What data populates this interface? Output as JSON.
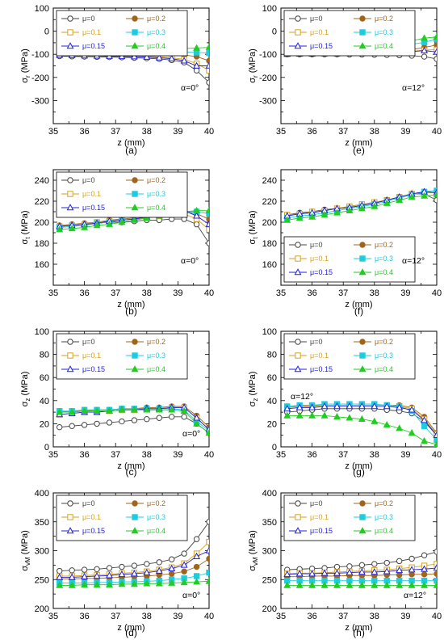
{
  "figure": {
    "series_styles": [
      {
        "label": "μ=0",
        "color": "#444444",
        "marker": "circle-open"
      },
      {
        "label": "μ=0.2",
        "color": "#a0651a",
        "marker": "circle-filled"
      },
      {
        "label": "μ=0.1",
        "color": "#d6a21e",
        "marker": "square-open"
      },
      {
        "label": "μ=0.3",
        "color": "#1ecce0",
        "marker": "square-filled"
      },
      {
        "label": "μ=0.15",
        "color": "#2222dd",
        "marker": "triangle-open"
      },
      {
        "label": "μ=0.4",
        "color": "#22cc22",
        "marker": "triangle-filled"
      }
    ]
  },
  "chart_data": [
    {
      "type": "line",
      "caption": "(a)",
      "annotation": "α=0°",
      "xlabel": "z (mm)",
      "ylabel_main": "σ",
      "ylabel_sub": "r",
      "ylabel_unit": " (MPa)",
      "xlim": [
        35,
        40
      ],
      "xticks": [
        35,
        36,
        37,
        38,
        39,
        40
      ],
      "ylim": [
        -400,
        100
      ],
      "yticks": [
        -300,
        -200,
        -100,
        0,
        100
      ],
      "x": [
        35.2,
        35.6,
        36.0,
        36.4,
        36.8,
        37.2,
        37.6,
        38.0,
        38.4,
        38.8,
        39.2,
        39.6,
        40.0
      ],
      "series": [
        {
          "values": [
            -108,
            -109,
            -110,
            -111,
            -112,
            -113,
            -115,
            -117,
            -120,
            -125,
            -135,
            -170,
            -222
          ]
        },
        {
          "values": [
            -96,
            -96,
            -96,
            -96,
            -96,
            -96,
            -96,
            -97,
            -98,
            -100,
            -103,
            -110,
            -128
          ]
        },
        {
          "values": [
            -100,
            -101,
            -102,
            -103,
            -104,
            -105,
            -106,
            -108,
            -111,
            -115,
            -122,
            -140,
            -170
          ]
        },
        {
          "values": [
            -90,
            -90,
            -90,
            -90,
            -90,
            -90,
            -90,
            -90,
            -90,
            -90,
            -90,
            -92,
            -95
          ]
        },
        {
          "values": [
            -104,
            -105,
            -106,
            -107,
            -108,
            -109,
            -110,
            -112,
            -115,
            -119,
            -128,
            -150,
            -150
          ]
        },
        {
          "values": [
            -85,
            -84,
            -83,
            -82,
            -81,
            -80,
            -79,
            -78,
            -77,
            -76,
            -75,
            -73,
            -70
          ]
        }
      ]
    },
    {
      "type": "line",
      "caption": "(e)",
      "annotation": "α=12°",
      "xlabel": "z (mm)",
      "ylabel_main": "σ",
      "ylabel_sub": "r",
      "ylabel_unit": " (MPa)",
      "xlim": [
        35,
        40
      ],
      "xticks": [
        35,
        36,
        37,
        38,
        39,
        40
      ],
      "ylim": [
        -400,
        100
      ],
      "yticks": [
        -300,
        -200,
        -100,
        0,
        100
      ],
      "x": [
        35.2,
        35.6,
        36.0,
        36.4,
        36.8,
        37.2,
        37.6,
        38.0,
        38.4,
        38.8,
        39.2,
        39.6,
        40.0
      ],
      "series": [
        {
          "values": [
            -100,
            -100,
            -100,
            -100,
            -100,
            -101,
            -101,
            -102,
            -103,
            -104,
            -106,
            -110,
            -120
          ]
        },
        {
          "values": [
            -95,
            -95,
            -94,
            -94,
            -93,
            -92,
            -91,
            -90,
            -88,
            -85,
            -80,
            -70,
            -60
          ]
        },
        {
          "values": [
            -98,
            -97,
            -97,
            -96,
            -96,
            -95,
            -94,
            -93,
            -92,
            -90,
            -87,
            -82,
            -80
          ]
        },
        {
          "values": [
            -80,
            -79,
            -78,
            -77,
            -76,
            -74,
            -72,
            -70,
            -67,
            -63,
            -57,
            -48,
            -35
          ]
        },
        {
          "values": [
            -99,
            -98,
            -98,
            -97,
            -97,
            -96,
            -95,
            -94,
            -93,
            -91,
            -88,
            -84,
            -90
          ]
        },
        {
          "values": [
            -72,
            -71,
            -70,
            -68,
            -66,
            -64,
            -62,
            -59,
            -56,
            -50,
            -42,
            -30,
            -25
          ]
        }
      ]
    },
    {
      "type": "line",
      "caption": "(b)",
      "annotation": "α=0°",
      "xlabel": "z (mm)",
      "ylabel_main": "σ",
      "ylabel_sub": "t",
      "ylabel_unit": " (MPa)",
      "xlim": [
        35,
        40
      ],
      "xticks": [
        35,
        36,
        37,
        38,
        39,
        40
      ],
      "ylim": [
        140,
        250
      ],
      "yticks": [
        160,
        180,
        200,
        220,
        240
      ],
      "x": [
        35.2,
        35.6,
        36.0,
        36.4,
        36.8,
        37.2,
        37.6,
        38.0,
        38.4,
        38.8,
        39.2,
        39.6,
        40.0
      ],
      "series": [
        {
          "values": [
            196,
            197,
            198,
            199,
            200,
            200,
            201,
            202,
            202,
            203,
            203,
            198,
            180
          ]
        },
        {
          "values": [
            197,
            198,
            199,
            200,
            202,
            203,
            204,
            206,
            207,
            209,
            210,
            208,
            203
          ]
        },
        {
          "values": [
            196,
            197,
            198,
            200,
            201,
            202,
            203,
            204,
            206,
            207,
            208,
            203,
            193
          ]
        },
        {
          "values": [
            195,
            196,
            197,
            199,
            200,
            202,
            203,
            205,
            207,
            208,
            210,
            210,
            208
          ]
        },
        {
          "values": [
            196,
            197,
            198,
            199,
            201,
            202,
            203,
            205,
            206,
            208,
            211,
            206,
            198
          ]
        },
        {
          "values": [
            193,
            194,
            195,
            197,
            198,
            200,
            202,
            204,
            206,
            208,
            210,
            211,
            211
          ]
        }
      ]
    },
    {
      "type": "line",
      "caption": "(f)",
      "annotation": "α=12°",
      "xlabel": "z (mm)",
      "ylabel_main": "σ",
      "ylabel_sub": "t",
      "ylabel_unit": " (MPa)",
      "xlim": [
        35,
        40
      ],
      "xticks": [
        35,
        36,
        37,
        38,
        39,
        40
      ],
      "ylim": [
        140,
        250
      ],
      "yticks": [
        160,
        180,
        200,
        220,
        240
      ],
      "x": [
        35.2,
        35.6,
        36.0,
        36.4,
        36.8,
        37.2,
        37.6,
        38.0,
        38.4,
        38.8,
        39.2,
        39.6,
        40.0
      ],
      "series": [
        {
          "values": [
            207,
            209,
            210,
            212,
            213,
            215,
            217,
            219,
            221,
            224,
            227,
            227,
            221
          ]
        },
        {
          "values": [
            206,
            208,
            209,
            211,
            213,
            214,
            216,
            218,
            221,
            224,
            227,
            229,
            230
          ]
        },
        {
          "values": [
            207,
            208,
            210,
            211,
            213,
            215,
            217,
            219,
            221,
            224,
            227,
            228,
            228
          ]
        },
        {
          "values": [
            204,
            206,
            207,
            209,
            211,
            213,
            215,
            217,
            220,
            223,
            226,
            229,
            230
          ]
        },
        {
          "values": [
            206,
            208,
            209,
            211,
            213,
            214,
            216,
            218,
            221,
            224,
            227,
            229,
            228
          ]
        },
        {
          "values": [
            202,
            204,
            205,
            207,
            209,
            211,
            213,
            215,
            218,
            221,
            224,
            225,
            226
          ]
        }
      ]
    },
    {
      "type": "line",
      "caption": "(c)",
      "annotation": "α=0°",
      "xlabel": "z (mm)",
      "ylabel_main": "σ",
      "ylabel_sub": "z",
      "ylabel_unit": " (MPa)",
      "xlim": [
        35,
        40
      ],
      "xticks": [
        35,
        36,
        37,
        38,
        39,
        40
      ],
      "ylim": [
        0,
        100
      ],
      "yticks": [
        0,
        20,
        40,
        60,
        80,
        100
      ],
      "x": [
        35.2,
        35.6,
        36.0,
        36.4,
        36.8,
        37.2,
        37.6,
        38.0,
        38.4,
        38.8,
        39.2,
        39.6,
        40.0
      ],
      "series": [
        {
          "values": [
            17,
            18,
            19,
            20,
            21,
            22,
            23,
            24,
            25,
            26,
            26,
            20,
            12
          ]
        },
        {
          "values": [
            30,
            31,
            31,
            32,
            32,
            33,
            33,
            34,
            34,
            35,
            35,
            27,
            17
          ]
        },
        {
          "values": [
            28,
            29,
            30,
            30,
            31,
            32,
            32,
            33,
            33,
            34,
            34,
            25,
            15
          ]
        },
        {
          "values": [
            31,
            31,
            32,
            32,
            32,
            33,
            33,
            33,
            33,
            33,
            32,
            22,
            14
          ]
        },
        {
          "values": [
            28,
            29,
            30,
            30,
            31,
            32,
            32,
            33,
            33,
            34,
            34,
            25,
            15
          ]
        },
        {
          "values": [
            30,
            30,
            31,
            31,
            31,
            32,
            32,
            32,
            32,
            32,
            31,
            20,
            12
          ]
        }
      ]
    },
    {
      "type": "line",
      "caption": "(g)",
      "annotation": "α=12°",
      "xlabel": "z (mm)",
      "ylabel_main": "σ",
      "ylabel_sub": "z",
      "ylabel_unit": " (MPa)",
      "xlim": [
        35,
        40
      ],
      "xticks": [
        35,
        36,
        37,
        38,
        39,
        40
      ],
      "ylim": [
        0,
        100
      ],
      "yticks": [
        0,
        20,
        40,
        60,
        80,
        100
      ],
      "x": [
        35.2,
        35.6,
        36.0,
        36.4,
        36.8,
        37.2,
        37.6,
        38.0,
        38.4,
        38.8,
        39.2,
        39.6,
        40.0
      ],
      "series": [
        {
          "values": [
            30,
            31,
            32,
            33,
            33,
            33,
            33,
            33,
            32,
            31,
            29,
            22,
            10
          ]
        },
        {
          "values": [
            35,
            35,
            36,
            36,
            36,
            36,
            36,
            36,
            36,
            36,
            34,
            26,
            12
          ]
        },
        {
          "values": [
            34,
            35,
            35,
            36,
            36,
            36,
            36,
            36,
            36,
            35,
            33,
            24,
            11
          ]
        },
        {
          "values": [
            35,
            36,
            36,
            37,
            37,
            37,
            37,
            37,
            36,
            35,
            31,
            18,
            6
          ]
        },
        {
          "values": [
            33,
            34,
            34,
            35,
            35,
            35,
            35,
            35,
            35,
            34,
            32,
            23,
            10
          ]
        },
        {
          "values": [
            27,
            27,
            27,
            27,
            26,
            25,
            24,
            22,
            19,
            16,
            12,
            5,
            2
          ]
        }
      ]
    },
    {
      "type": "line",
      "caption": "(d)",
      "annotation": "α=0°",
      "xlabel": "z (mm)",
      "ylabel_main": "σ",
      "ylabel_sub": "vM",
      "ylabel_unit": " (MPa)",
      "xlim": [
        35,
        40
      ],
      "xticks": [
        35,
        36,
        37,
        38,
        39,
        40
      ],
      "ylim": [
        200,
        400
      ],
      "yticks": [
        200,
        250,
        300,
        350,
        400
      ],
      "x": [
        35.2,
        35.6,
        36.0,
        36.4,
        36.8,
        37.2,
        37.6,
        38.0,
        38.4,
        38.8,
        39.2,
        39.6,
        40.0
      ],
      "series": [
        {
          "values": [
            265,
            266,
            267,
            268,
            270,
            272,
            274,
            277,
            280,
            285,
            295,
            320,
            350
          ]
        },
        {
          "values": [
            251,
            251,
            252,
            252,
            253,
            254,
            255,
            256,
            258,
            260,
            264,
            272,
            286
          ]
        },
        {
          "values": [
            256,
            256,
            257,
            258,
            259,
            261,
            262,
            264,
            267,
            271,
            278,
            295,
            315
          ]
        },
        {
          "values": [
            244,
            244,
            244,
            245,
            245,
            246,
            246,
            247,
            248,
            250,
            252,
            256,
            262
          ]
        },
        {
          "values": [
            254,
            254,
            255,
            256,
            257,
            259,
            260,
            262,
            265,
            269,
            275,
            290,
            300
          ]
        },
        {
          "values": [
            240,
            240,
            241,
            241,
            241,
            242,
            242,
            243,
            243,
            244,
            245,
            246,
            247
          ]
        }
      ]
    },
    {
      "type": "line",
      "caption": "(h)",
      "annotation": "α=12°",
      "xlabel": "z (mm)",
      "ylabel_main": "σ",
      "ylabel_sub": "vM",
      "ylabel_unit": " (MPa)",
      "xlim": [
        35,
        40
      ],
      "xticks": [
        35,
        36,
        37,
        38,
        39,
        40
      ],
      "ylim": [
        200,
        400
      ],
      "yticks": [
        200,
        250,
        300,
        350,
        400
      ],
      "x": [
        35.2,
        35.6,
        36.0,
        36.4,
        36.8,
        37.2,
        37.6,
        38.0,
        38.4,
        38.8,
        39.2,
        39.6,
        40.0
      ],
      "series": [
        {
          "values": [
            267,
            268,
            269,
            270,
            272,
            273,
            275,
            277,
            279,
            282,
            286,
            292,
            298
          ]
        },
        {
          "values": [
            255,
            255,
            256,
            256,
            256,
            257,
            257,
            257,
            258,
            258,
            259,
            259,
            260
          ]
        },
        {
          "values": [
            260,
            261,
            261,
            262,
            263,
            264,
            265,
            266,
            267,
            269,
            271,
            274,
            277
          ]
        },
        {
          "values": [
            248,
            248,
            248,
            248,
            248,
            248,
            248,
            248,
            248,
            248,
            248,
            248,
            248
          ]
        },
        {
          "values": [
            259,
            260,
            260,
            261,
            261,
            262,
            263,
            263,
            264,
            266,
            267,
            268,
            270
          ]
        },
        {
          "values": [
            240,
            240,
            240,
            240,
            240,
            240,
            240,
            240,
            240,
            240,
            240,
            240,
            240
          ]
        }
      ]
    }
  ]
}
